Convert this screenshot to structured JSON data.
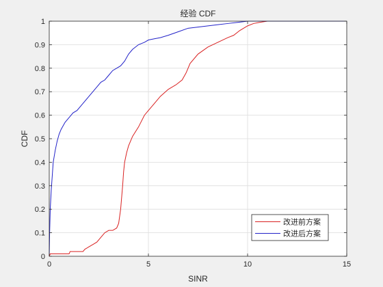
{
  "chart_data": {
    "type": "line",
    "title": "经验 CDF",
    "xlabel": "SINR",
    "ylabel": "CDF",
    "xlim": [
      0,
      15
    ],
    "ylim": [
      0,
      1
    ],
    "xticks": [
      "0",
      "5",
      "10",
      "15"
    ],
    "yticks": [
      "0",
      "0.1",
      "0.2",
      "0.3",
      "0.4",
      "0.5",
      "0.6",
      "0.7",
      "0.8",
      "0.9",
      "1"
    ],
    "grid": true,
    "legend_position": "bottom-right",
    "series": [
      {
        "name": "改进前方案",
        "color": "#d92020",
        "x": [
          0,
          0.05,
          1.0,
          1.05,
          1.3,
          1.7,
          1.8,
          2.0,
          2.2,
          2.4,
          2.6,
          2.8,
          3.0,
          3.2,
          3.4,
          3.5,
          3.6,
          3.7,
          3.75,
          3.8,
          3.85,
          3.9,
          4.0,
          4.2,
          4.5,
          4.8,
          5.0,
          5.3,
          5.6,
          6.0,
          6.4,
          6.7,
          6.9,
          7.1,
          7.5,
          8.0,
          8.5,
          9.0,
          9.3,
          9.6,
          9.8,
          10.0,
          10.3,
          10.6,
          11.0,
          15
        ],
        "y": [
          0,
          0.01,
          0.01,
          0.02,
          0.02,
          0.02,
          0.03,
          0.04,
          0.05,
          0.06,
          0.08,
          0.1,
          0.11,
          0.11,
          0.12,
          0.14,
          0.2,
          0.3,
          0.36,
          0.4,
          0.42,
          0.44,
          0.47,
          0.51,
          0.55,
          0.6,
          0.62,
          0.65,
          0.68,
          0.71,
          0.73,
          0.75,
          0.78,
          0.82,
          0.86,
          0.89,
          0.91,
          0.93,
          0.94,
          0.96,
          0.97,
          0.98,
          0.99,
          0.995,
          1.0,
          1.0
        ]
      },
      {
        "name": "改进后方案",
        "color": "#2020c8",
        "x": [
          0,
          0.02,
          0.05,
          0.1,
          0.15,
          0.2,
          0.3,
          0.4,
          0.5,
          0.6,
          0.8,
          1.0,
          1.2,
          1.4,
          1.6,
          1.8,
          2.0,
          2.2,
          2.4,
          2.6,
          2.8,
          3.0,
          3.2,
          3.4,
          3.6,
          3.8,
          4.0,
          4.2,
          4.5,
          4.8,
          5.0,
          5.3,
          5.6,
          6.0,
          6.5,
          7.0,
          7.5,
          8.0,
          8.5,
          9.0,
          9.5,
          10.0,
          10.5,
          15
        ],
        "y": [
          0,
          0.1,
          0.2,
          0.28,
          0.34,
          0.4,
          0.45,
          0.49,
          0.52,
          0.54,
          0.57,
          0.59,
          0.61,
          0.62,
          0.64,
          0.66,
          0.68,
          0.7,
          0.72,
          0.74,
          0.75,
          0.77,
          0.79,
          0.8,
          0.81,
          0.83,
          0.86,
          0.88,
          0.9,
          0.91,
          0.92,
          0.925,
          0.93,
          0.94,
          0.955,
          0.97,
          0.975,
          0.98,
          0.985,
          0.99,
          0.995,
          1.0,
          1.0,
          1.0
        ]
      }
    ]
  }
}
